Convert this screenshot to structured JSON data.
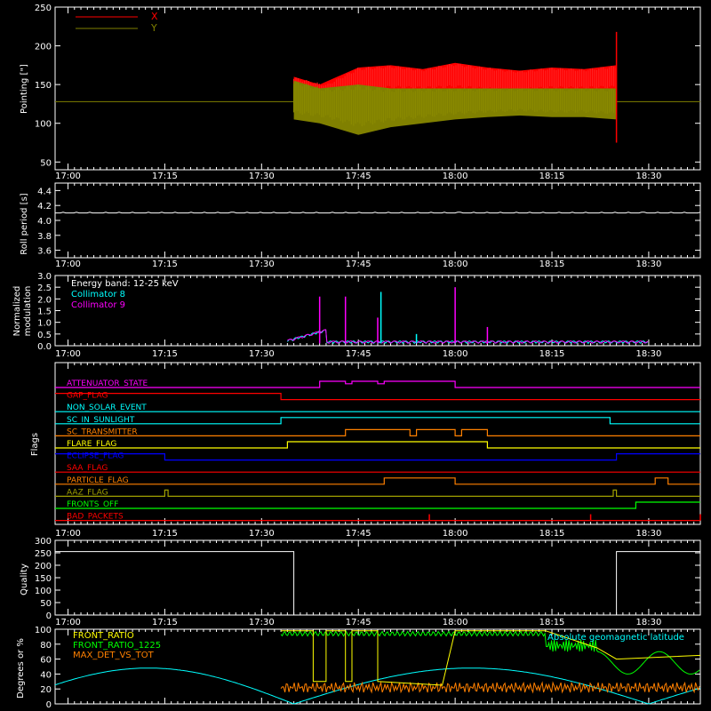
{
  "colors": {
    "background": "#000000",
    "axes": "#ffffff",
    "red": "#ff0000",
    "olive": "#808000",
    "cyan": "#00ffff",
    "magenta": "#ff00ff",
    "orange": "#ff8000",
    "yellow": "#ffff00",
    "blue": "#0000ff",
    "green": "#00ff00",
    "olive_green": "#a0a000"
  },
  "time_ticks": [
    "17:00",
    "17:15",
    "17:30",
    "17:45",
    "18:00",
    "18:15",
    "18:30"
  ],
  "chart_data": [
    {
      "id": "pointing",
      "type": "line",
      "title": "",
      "xlabel": "",
      "ylabel": "Pointing [\"]",
      "x_range": [
        "16:58",
        "18:38"
      ],
      "ylim": [
        40,
        250
      ],
      "yticks": [
        "50",
        "100",
        "150",
        "200",
        "250"
      ],
      "legend_placement": "top-left",
      "series": [
        {
          "name": "X",
          "color": "#ff0000",
          "x": [
            "17:35",
            "17:39",
            "17:45",
            "17:50",
            "17:55",
            "18:00",
            "18:05",
            "18:10",
            "18:15",
            "18:20",
            "18:25"
          ],
          "y_max": [
            160,
            150,
            172,
            175,
            170,
            178,
            172,
            168,
            172,
            170,
            175
          ],
          "y_min": [
            120,
            125,
            135,
            140,
            140,
            140,
            138,
            138,
            140,
            140,
            140
          ]
        },
        {
          "name": "Y",
          "color": "#808000",
          "x": [
            "17:35",
            "17:39",
            "17:45",
            "17:50",
            "17:55",
            "18:00",
            "18:05",
            "18:10",
            "18:15",
            "18:20",
            "18:25"
          ],
          "y_max": [
            155,
            145,
            150,
            145,
            145,
            145,
            145,
            145,
            145,
            145,
            145
          ],
          "y_min": [
            105,
            100,
            85,
            95,
            100,
            105,
            108,
            110,
            108,
            108,
            105
          ]
        }
      ],
      "baseline": 128,
      "spike": {
        "x": "18:25",
        "y_max": 218,
        "y_min": 75
      }
    },
    {
      "id": "roll",
      "type": "line",
      "title": "",
      "xlabel": "",
      "ylabel": "Roll period [s]",
      "x_range": [
        "16:58",
        "18:38"
      ],
      "ylim": [
        3.5,
        4.5
      ],
      "yticks": [
        "3.6",
        "3.8",
        "4.0",
        "4.2",
        "4.4"
      ],
      "series": [
        {
          "name": "",
          "color": "#ffffff",
          "x": [
            "16:58",
            "18:38"
          ],
          "y": [
            4.1,
            4.1
          ]
        }
      ]
    },
    {
      "id": "modulation",
      "type": "line",
      "title": "",
      "xlabel": "",
      "ylabel": "Normalized modulation",
      "ylabel_lines": [
        "Normalized",
        "modulation"
      ],
      "x_range": [
        "16:58",
        "18:38"
      ],
      "ylim": [
        0,
        3.0
      ],
      "yticks": [
        "0.0",
        "0.5",
        "1.0",
        "1.5",
        "2.0",
        "2.5",
        "3.0"
      ],
      "legend_header": "Energy band: 12-25 keV",
      "series": [
        {
          "name": "Collimator 8",
          "color": "#00ffff"
        },
        {
          "name": "Collimator 9",
          "color": "#ff00ff"
        }
      ],
      "spikes": [
        {
          "x": "17:39",
          "y": 2.1,
          "color": "#ff00ff"
        },
        {
          "x": "17:43",
          "y": 2.1,
          "color": "#ff00ff"
        },
        {
          "x": "17:48",
          "y": 1.2,
          "color": "#ff00ff"
        },
        {
          "x": "17:48.5",
          "y": 2.3,
          "color": "#00ffff"
        },
        {
          "x": "18:00",
          "y": 2.5,
          "color": "#ff00ff"
        },
        {
          "x": "17:54",
          "y": 0.5,
          "color": "#00ffff"
        },
        {
          "x": "18:05",
          "y": 0.8,
          "color": "#ff00ff"
        }
      ]
    },
    {
      "id": "flags",
      "type": "line",
      "title": "",
      "xlabel": "",
      "ylabel": "Flags",
      "x_range": [
        "16:58",
        "18:38"
      ],
      "series": [
        {
          "name": "ATTENUATOR_STATE",
          "color": "#ff00ff"
        },
        {
          "name": "GAP_FLAG",
          "color": "#ff0000"
        },
        {
          "name": "NON_SOLAR_EVENT",
          "color": "#00ffff"
        },
        {
          "name": "SC_IN_SUNLIGHT",
          "color": "#00ffff"
        },
        {
          "name": "SC_TRANSMITTER",
          "color": "#ff8000"
        },
        {
          "name": "FLARE_FLAG",
          "color": "#ffff00"
        },
        {
          "name": "ECLIPSE_FLAG",
          "color": "#0000ff"
        },
        {
          "name": "SAA_FLAG",
          "color": "#ff0000"
        },
        {
          "name": "PARTICLE_FLAG",
          "color": "#ff8000"
        },
        {
          "name": "AAZ_FLAG",
          "color": "#a0a000"
        },
        {
          "name": "FRONTS_OFF",
          "color": "#00ff00"
        },
        {
          "name": "BAD_PACKETS",
          "color": "#ff0000"
        }
      ]
    },
    {
      "id": "quality",
      "type": "line",
      "title": "",
      "xlabel": "",
      "ylabel": "Quality",
      "x_range": [
        "16:58",
        "18:38"
      ],
      "ylim": [
        0,
        300
      ],
      "yticks": [
        "0",
        "50",
        "100",
        "150",
        "200",
        "250",
        "300"
      ],
      "series": [
        {
          "name": "",
          "color": "#ffffff",
          "x": [
            "16:58",
            "17:35",
            "17:35",
            "18:25",
            "18:25",
            "18:38"
          ],
          "y": [
            255,
            255,
            0,
            0,
            255,
            255
          ]
        }
      ]
    },
    {
      "id": "ratios",
      "type": "line",
      "title": "",
      "xlabel": "",
      "ylabel": "Degrees or %",
      "x_range": [
        "16:58",
        "18:38"
      ],
      "ylim": [
        0,
        100
      ],
      "yticks": [
        "0",
        "20",
        "40",
        "60",
        "80",
        "100"
      ],
      "series": [
        {
          "name": "FRONT_RATIO",
          "color": "#ffff00"
        },
        {
          "name": "FRONT_RATIO_1225",
          "color": "#00ff00"
        },
        {
          "name": "MAX_DET_VS_TOT",
          "color": "#ff8000"
        },
        {
          "name": "Absolute geomagnetic latitude",
          "color": "#00ffff"
        }
      ]
    }
  ]
}
